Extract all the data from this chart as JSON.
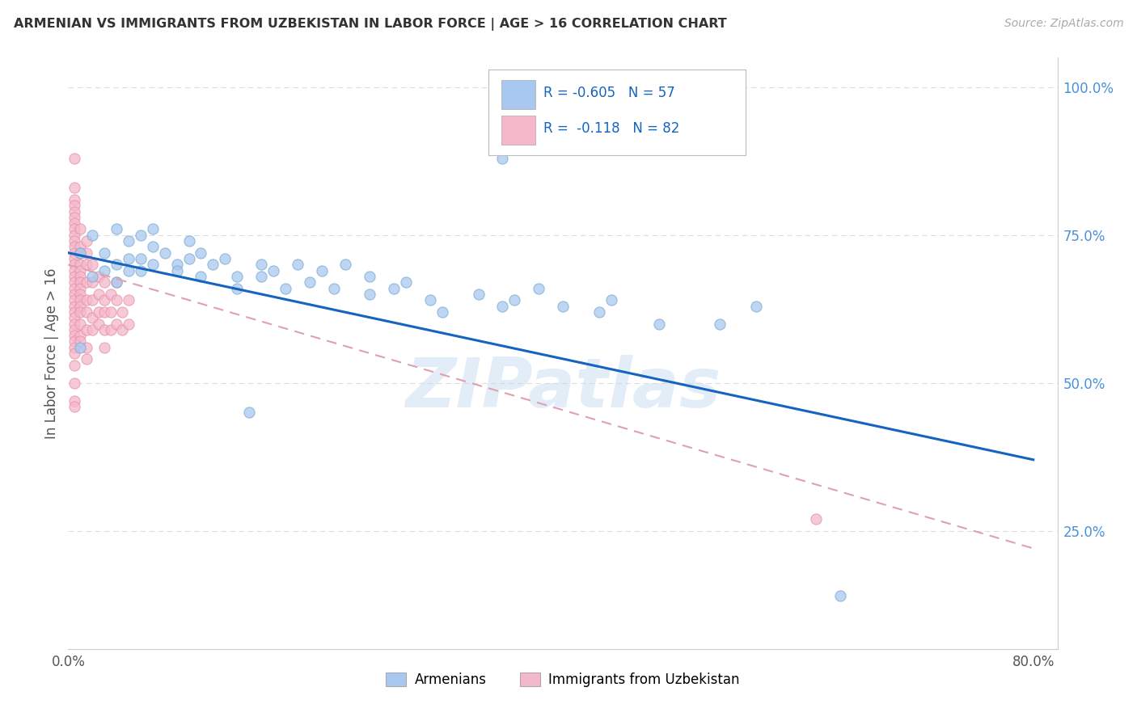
{
  "title": "ARMENIAN VS IMMIGRANTS FROM UZBEKISTAN IN LABOR FORCE | AGE > 16 CORRELATION CHART",
  "source": "Source: ZipAtlas.com",
  "ylabel": "In Labor Force | Age > 16",
  "xlim": [
    0.0,
    0.82
  ],
  "ylim": [
    0.05,
    1.05
  ],
  "armenian_color": "#a8c8f0",
  "armenian_edge_color": "#7aaad0",
  "uzbek_color": "#f4b8ca",
  "uzbek_edge_color": "#e890a8",
  "armenian_line_color": "#1565c0",
  "uzbek_line_color": "#e0a0b0",
  "R_armenian": -0.605,
  "N_armenian": 57,
  "R_uzbek": -0.118,
  "N_uzbek": 82,
  "legend_label_armenian": "Armenians",
  "legend_label_uzbek": "Immigrants from Uzbekistan",
  "armenian_scatter": [
    [
      0.01,
      0.72
    ],
    [
      0.02,
      0.75
    ],
    [
      0.02,
      0.68
    ],
    [
      0.03,
      0.72
    ],
    [
      0.03,
      0.69
    ],
    [
      0.04,
      0.76
    ],
    [
      0.04,
      0.7
    ],
    [
      0.04,
      0.67
    ],
    [
      0.05,
      0.74
    ],
    [
      0.05,
      0.71
    ],
    [
      0.05,
      0.69
    ],
    [
      0.06,
      0.75
    ],
    [
      0.06,
      0.71
    ],
    [
      0.06,
      0.69
    ],
    [
      0.07,
      0.76
    ],
    [
      0.07,
      0.73
    ],
    [
      0.07,
      0.7
    ],
    [
      0.08,
      0.72
    ],
    [
      0.09,
      0.7
    ],
    [
      0.09,
      0.69
    ],
    [
      0.1,
      0.74
    ],
    [
      0.1,
      0.71
    ],
    [
      0.11,
      0.68
    ],
    [
      0.11,
      0.72
    ],
    [
      0.12,
      0.7
    ],
    [
      0.13,
      0.71
    ],
    [
      0.14,
      0.68
    ],
    [
      0.14,
      0.66
    ],
    [
      0.16,
      0.7
    ],
    [
      0.16,
      0.68
    ],
    [
      0.17,
      0.69
    ],
    [
      0.18,
      0.66
    ],
    [
      0.19,
      0.7
    ],
    [
      0.2,
      0.67
    ],
    [
      0.21,
      0.69
    ],
    [
      0.22,
      0.66
    ],
    [
      0.23,
      0.7
    ],
    [
      0.25,
      0.68
    ],
    [
      0.25,
      0.65
    ],
    [
      0.27,
      0.66
    ],
    [
      0.28,
      0.67
    ],
    [
      0.3,
      0.64
    ],
    [
      0.31,
      0.62
    ],
    [
      0.34,
      0.65
    ],
    [
      0.36,
      0.63
    ],
    [
      0.37,
      0.64
    ],
    [
      0.39,
      0.66
    ],
    [
      0.41,
      0.63
    ],
    [
      0.44,
      0.62
    ],
    [
      0.45,
      0.64
    ],
    [
      0.49,
      0.6
    ],
    [
      0.54,
      0.6
    ],
    [
      0.57,
      0.63
    ],
    [
      0.15,
      0.45
    ],
    [
      0.64,
      0.14
    ],
    [
      0.36,
      0.88
    ],
    [
      0.01,
      0.56
    ]
  ],
  "uzbek_scatter": [
    [
      0.005,
      0.88
    ],
    [
      0.005,
      0.83
    ],
    [
      0.005,
      0.81
    ],
    [
      0.005,
      0.8
    ],
    [
      0.005,
      0.79
    ],
    [
      0.005,
      0.78
    ],
    [
      0.005,
      0.77
    ],
    [
      0.005,
      0.76
    ],
    [
      0.005,
      0.75
    ],
    [
      0.005,
      0.74
    ],
    [
      0.005,
      0.73
    ],
    [
      0.005,
      0.72
    ],
    [
      0.005,
      0.71
    ],
    [
      0.005,
      0.7
    ],
    [
      0.005,
      0.69
    ],
    [
      0.005,
      0.68
    ],
    [
      0.005,
      0.67
    ],
    [
      0.005,
      0.66
    ],
    [
      0.005,
      0.65
    ],
    [
      0.005,
      0.64
    ],
    [
      0.005,
      0.63
    ],
    [
      0.005,
      0.62
    ],
    [
      0.005,
      0.61
    ],
    [
      0.005,
      0.6
    ],
    [
      0.005,
      0.59
    ],
    [
      0.005,
      0.58
    ],
    [
      0.005,
      0.57
    ],
    [
      0.005,
      0.56
    ],
    [
      0.005,
      0.55
    ],
    [
      0.005,
      0.53
    ],
    [
      0.005,
      0.5
    ],
    [
      0.005,
      0.47
    ],
    [
      0.005,
      0.46
    ],
    [
      0.01,
      0.76
    ],
    [
      0.01,
      0.73
    ],
    [
      0.01,
      0.72
    ],
    [
      0.01,
      0.7
    ],
    [
      0.01,
      0.69
    ],
    [
      0.01,
      0.68
    ],
    [
      0.01,
      0.67
    ],
    [
      0.01,
      0.66
    ],
    [
      0.01,
      0.65
    ],
    [
      0.01,
      0.64
    ],
    [
      0.01,
      0.63
    ],
    [
      0.01,
      0.62
    ],
    [
      0.01,
      0.6
    ],
    [
      0.01,
      0.58
    ],
    [
      0.01,
      0.57
    ],
    [
      0.015,
      0.74
    ],
    [
      0.015,
      0.72
    ],
    [
      0.015,
      0.7
    ],
    [
      0.015,
      0.67
    ],
    [
      0.015,
      0.64
    ],
    [
      0.015,
      0.62
    ],
    [
      0.015,
      0.59
    ],
    [
      0.015,
      0.56
    ],
    [
      0.015,
      0.54
    ],
    [
      0.02,
      0.7
    ],
    [
      0.02,
      0.67
    ],
    [
      0.02,
      0.64
    ],
    [
      0.02,
      0.61
    ],
    [
      0.02,
      0.59
    ],
    [
      0.025,
      0.68
    ],
    [
      0.025,
      0.65
    ],
    [
      0.025,
      0.62
    ],
    [
      0.025,
      0.6
    ],
    [
      0.03,
      0.67
    ],
    [
      0.03,
      0.64
    ],
    [
      0.03,
      0.62
    ],
    [
      0.03,
      0.59
    ],
    [
      0.03,
      0.56
    ],
    [
      0.035,
      0.65
    ],
    [
      0.035,
      0.62
    ],
    [
      0.035,
      0.59
    ],
    [
      0.04,
      0.67
    ],
    [
      0.04,
      0.64
    ],
    [
      0.04,
      0.6
    ],
    [
      0.045,
      0.62
    ],
    [
      0.045,
      0.59
    ],
    [
      0.05,
      0.64
    ],
    [
      0.05,
      0.6
    ],
    [
      0.62,
      0.27
    ]
  ],
  "background_color": "#ffffff",
  "grid_color": "#dddddd",
  "watermark_text": "ZIPatlas",
  "watermark_color": "#c0d8ee",
  "watermark_alpha": 0.45,
  "arm_line_x0": 0.0,
  "arm_line_y0": 0.72,
  "arm_line_x1": 0.8,
  "arm_line_y1": 0.37,
  "uzb_line_x0": 0.0,
  "uzb_line_y0": 0.7,
  "uzb_line_x1": 0.8,
  "uzb_line_y1": 0.22
}
